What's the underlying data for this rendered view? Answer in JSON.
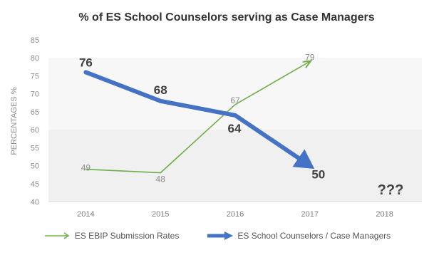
{
  "chart_data": {
    "type": "line",
    "title": "% of ES School Counselors serving as Case Managers",
    "ylabel": "PERCENTAGES %",
    "xlabel": "",
    "ylim": [
      40,
      85
    ],
    "yticks": [
      "40",
      "45",
      "50",
      "55",
      "60",
      "65",
      "70",
      "75",
      "80",
      "85"
    ],
    "categories": [
      "2014",
      "2015",
      "2016",
      "2017",
      "2018"
    ],
    "series": [
      {
        "name": "ES EBIP Submission Rates",
        "color": "#70ad47",
        "values": [
          49,
          48,
          67,
          79,
          null
        ],
        "labels": [
          "49",
          "48",
          "67",
          "79",
          ""
        ]
      },
      {
        "name": "ES School Counselors / Case Managers",
        "color": "#4472c4",
        "values": [
          76,
          68,
          64,
          50,
          null
        ],
        "labels": [
          "76",
          "68",
          "64",
          "50",
          ""
        ]
      }
    ],
    "annotation": "???",
    "grid": false,
    "legend_position": "bottom"
  }
}
